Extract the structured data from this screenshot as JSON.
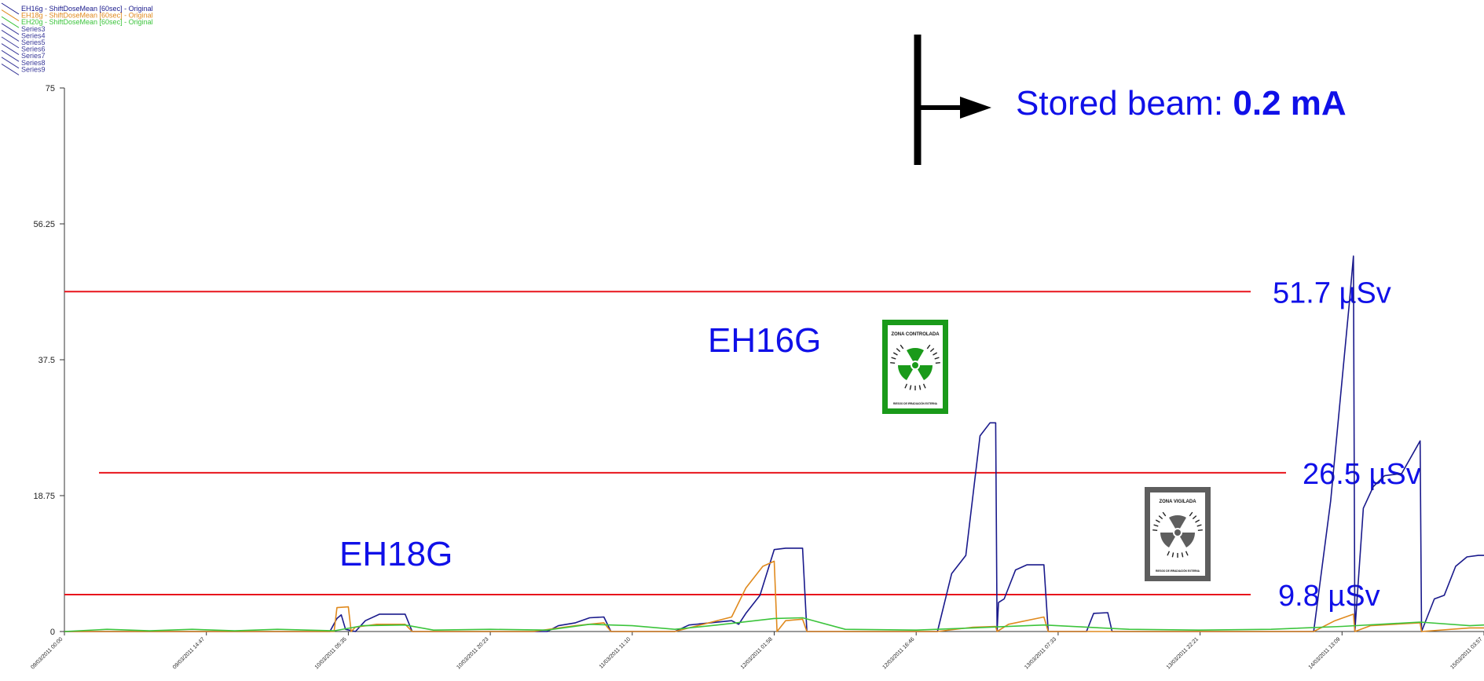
{
  "chart_data": {
    "type": "line",
    "ylim": [
      0,
      75
    ],
    "yticks": [
      "75",
      "56.25",
      "37.5",
      "18.75",
      "0"
    ],
    "ytick_values": [
      75,
      56.25,
      37.5,
      18.75,
      0
    ],
    "x_range": [
      "09/03/2011 00:00",
      "15/03/2011 03:57"
    ],
    "xtick_labels": [
      "09/03/2011 00:00",
      "09/03/2011 14:47",
      "10/03/2011 05:35",
      "10/03/2011 20:23",
      "11/03/2011 11:10",
      "12/03/2011 01:58",
      "12/03/2011 16:46",
      "13/03/2011 07:33",
      "13/03/2011 22:21",
      "14/03/2011 13:09",
      "15/03/2011 03:57"
    ],
    "legend": [
      {
        "name": "EH16g - ShiftDoseMean [60sec] - Original",
        "color": "#1a1a8c"
      },
      {
        "name": "EH18g - ShiftDoseMean [60sec] - Original",
        "color": "#e08a1e"
      },
      {
        "name": "EH20g - ShiftDoseMean [60sec] - Original",
        "color": "#3cc43c"
      },
      {
        "name": "Series3",
        "color": "#3a3a9a"
      },
      {
        "name": "Series4",
        "color": "#3a3a9a"
      },
      {
        "name": "Series5",
        "color": "#3a3a9a"
      },
      {
        "name": "Series6",
        "color": "#3a3a9a"
      },
      {
        "name": "Series7",
        "color": "#3a3a9a"
      },
      {
        "name": "Series8",
        "color": "#3a3a9a"
      },
      {
        "name": "Series9",
        "color": "#3a3a9a"
      }
    ],
    "series": [
      {
        "name": "EH16g - ShiftDoseMean [60sec] - Original",
        "color": "#1a1a8c",
        "points": [
          [
            0,
            0
          ],
          [
            0.187,
            0
          ],
          [
            0.192,
            1.8
          ],
          [
            0.195,
            2.3
          ],
          [
            0.198,
            0.3
          ],
          [
            0.205,
            0
          ],
          [
            0.212,
            1.5
          ],
          [
            0.222,
            2.4
          ],
          [
            0.24,
            2.4
          ],
          [
            0.245,
            0
          ],
          [
            0.34,
            0
          ],
          [
            0.348,
            0.8
          ],
          [
            0.36,
            1.2
          ],
          [
            0.37,
            1.9
          ],
          [
            0.38,
            2.0
          ],
          [
            0.385,
            0
          ],
          [
            0.43,
            0
          ],
          [
            0.44,
            0.9
          ],
          [
            0.455,
            1.2
          ],
          [
            0.47,
            1.5
          ],
          [
            0.475,
            1.0
          ],
          [
            0.48,
            2.5
          ],
          [
            0.49,
            5.0
          ],
          [
            0.5,
            11.3
          ],
          [
            0.508,
            11.5
          ],
          [
            0.52,
            11.5
          ],
          [
            0.523,
            0
          ],
          [
            0.615,
            0
          ],
          [
            0.625,
            8.0
          ],
          [
            0.635,
            10.5
          ],
          [
            0.645,
            27.0
          ],
          [
            0.652,
            28.8
          ],
          [
            0.656,
            28.8
          ],
          [
            0.657,
            0
          ],
          [
            0.658,
            4.0
          ],
          [
            0.662,
            4.5
          ],
          [
            0.67,
            8.5
          ],
          [
            0.678,
            9.2
          ],
          [
            0.69,
            9.2
          ],
          [
            0.693,
            0
          ],
          [
            0.72,
            0
          ],
          [
            0.725,
            2.5
          ],
          [
            0.735,
            2.6
          ],
          [
            0.738,
            0
          ],
          [
            0.88,
            0
          ],
          [
            0.892,
            18.0
          ],
          [
            0.905,
            45.0
          ],
          [
            0.908,
            51.8
          ],
          [
            0.909,
            0
          ],
          [
            0.915,
            17.0
          ],
          [
            0.922,
            20.0
          ],
          [
            0.93,
            21.5
          ],
          [
            0.942,
            21.8
          ],
          [
            0.955,
            26.3
          ],
          [
            0.956,
            0
          ],
          [
            0.965,
            4.5
          ],
          [
            0.972,
            5.0
          ],
          [
            0.98,
            9.0
          ],
          [
            0.988,
            10.3
          ],
          [
            0.996,
            10.5
          ],
          [
            1,
            10.5
          ]
        ]
      },
      {
        "name": "EH18g - ShiftDoseMean [60sec] - Original",
        "color": "#e08a1e",
        "points": [
          [
            0,
            0
          ],
          [
            0.19,
            0
          ],
          [
            0.192,
            3.3
          ],
          [
            0.2,
            3.4
          ],
          [
            0.202,
            0
          ],
          [
            0.205,
            0.6
          ],
          [
            0.22,
            1.0
          ],
          [
            0.24,
            1.0
          ],
          [
            0.245,
            0
          ],
          [
            0.33,
            0
          ],
          [
            0.36,
            0.8
          ],
          [
            0.38,
            1.2
          ],
          [
            0.385,
            0
          ],
          [
            0.43,
            0
          ],
          [
            0.45,
            1.0
          ],
          [
            0.47,
            2.0
          ],
          [
            0.48,
            6.0
          ],
          [
            0.492,
            9.0
          ],
          [
            0.5,
            9.7
          ],
          [
            0.502,
            0
          ],
          [
            0.508,
            1.5
          ],
          [
            0.52,
            1.7
          ],
          [
            0.523,
            0
          ],
          [
            0.615,
            0
          ],
          [
            0.64,
            0.6
          ],
          [
            0.656,
            0.7
          ],
          [
            0.657,
            0
          ],
          [
            0.665,
            1.0
          ],
          [
            0.69,
            2.0
          ],
          [
            0.693,
            0
          ],
          [
            0.88,
            0
          ],
          [
            0.895,
            1.5
          ],
          [
            0.908,
            2.4
          ],
          [
            0.909,
            0
          ],
          [
            0.92,
            0.8
          ],
          [
            0.955,
            1.2
          ],
          [
            0.956,
            0
          ],
          [
            0.99,
            0.5
          ],
          [
            1,
            0.5
          ]
        ]
      },
      {
        "name": "EH20g - ShiftDoseMean [60sec] - Original",
        "color": "#3cc43c",
        "points": [
          [
            0,
            0
          ],
          [
            0.03,
            0.3
          ],
          [
            0.06,
            0.1
          ],
          [
            0.09,
            0.3
          ],
          [
            0.12,
            0.1
          ],
          [
            0.15,
            0.3
          ],
          [
            0.19,
            0.1
          ],
          [
            0.21,
            0.8
          ],
          [
            0.24,
            0.9
          ],
          [
            0.26,
            0.2
          ],
          [
            0.3,
            0.3
          ],
          [
            0.34,
            0.2
          ],
          [
            0.37,
            1.0
          ],
          [
            0.4,
            0.8
          ],
          [
            0.43,
            0.3
          ],
          [
            0.46,
            0.9
          ],
          [
            0.5,
            1.8
          ],
          [
            0.52,
            1.9
          ],
          [
            0.55,
            0.3
          ],
          [
            0.6,
            0.2
          ],
          [
            0.64,
            0.5
          ],
          [
            0.69,
            0.9
          ],
          [
            0.75,
            0.3
          ],
          [
            0.8,
            0.2
          ],
          [
            0.85,
            0.3
          ],
          [
            0.9,
            0.7
          ],
          [
            0.955,
            1.3
          ],
          [
            0.99,
            0.8
          ],
          [
            1,
            0.9
          ]
        ]
      }
    ],
    "thresholds": [
      {
        "value": 46.9,
        "label": "51.7 µSv",
        "color": "#e8141c"
      },
      {
        "value": 21.9,
        "label": "26.5 µSv",
        "color": "#e8141c"
      },
      {
        "value": 5.1,
        "label": "9.8 µSv",
        "color": "#e8141c"
      }
    ],
    "annotations": {
      "stored_beam_prefix": "Stored beam: ",
      "stored_beam_value": "0.2 mA",
      "eh16g": "EH16G",
      "eh18g": "EH18G"
    },
    "signs": [
      {
        "top_text": "ZONA CONTROLADA",
        "bottom_text": "RIESGO DE IRRADIACIÓN EXTERNA",
        "color": "#1a9a1a",
        "icon": "radiation-trefoil-icon"
      },
      {
        "top_text": "ZONA VIGILADA",
        "bottom_text": "RIESGO DE IRRADIACIÓN EXTERNA",
        "color": "#5e5e5e",
        "icon": "radiation-trefoil-icon"
      }
    ]
  }
}
